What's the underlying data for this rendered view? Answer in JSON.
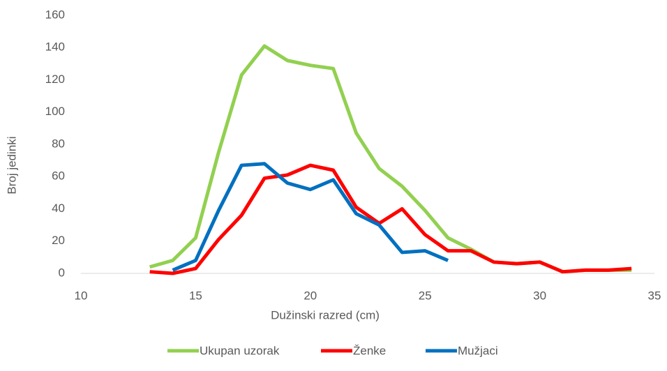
{
  "chart_data": {
    "type": "line",
    "x_label": "Dužinski razred (cm)",
    "y_label": "Broj jedinki",
    "xlim": [
      10,
      35
    ],
    "xticks": [
      10,
      15,
      20,
      25,
      30,
      35
    ],
    "ylim": [
      0,
      160
    ],
    "yticks": [
      0,
      20,
      40,
      60,
      80,
      100,
      120,
      140,
      160
    ],
    "grid": false,
    "legend": "bottom",
    "series": [
      {
        "name": "Ukupan uzorak",
        "color": "#92d050",
        "x": [
          13,
          14,
          15,
          16,
          17,
          18,
          19,
          20,
          21,
          22,
          23,
          24,
          25,
          26,
          27,
          28,
          29,
          30,
          31,
          32,
          33,
          34
        ],
        "values": [
          4,
          8,
          22,
          75,
          123,
          141,
          132,
          129,
          127,
          87,
          65,
          54,
          39,
          22,
          15,
          7,
          6,
          7,
          1,
          2,
          2,
          2
        ]
      },
      {
        "name": "Ženke",
        "color": "#ff0000",
        "x": [
          13,
          14,
          15,
          16,
          17,
          18,
          19,
          20,
          21,
          22,
          23,
          24,
          25,
          26,
          27,
          28,
          29,
          30,
          31,
          32,
          33,
          34
        ],
        "values": [
          1,
          0,
          3,
          21,
          36,
          59,
          61,
          67,
          64,
          41,
          31,
          40,
          24,
          14,
          14,
          7,
          6,
          7,
          1,
          2,
          2,
          3
        ]
      },
      {
        "name": "Mužjaci",
        "color": "#0070c0",
        "x": [
          14,
          15,
          16,
          17,
          18,
          19,
          20,
          21,
          22,
          23,
          24,
          25,
          26
        ],
        "values": [
          2,
          8,
          39,
          67,
          68,
          56,
          52,
          58,
          37,
          30,
          13,
          14,
          8
        ]
      }
    ]
  }
}
